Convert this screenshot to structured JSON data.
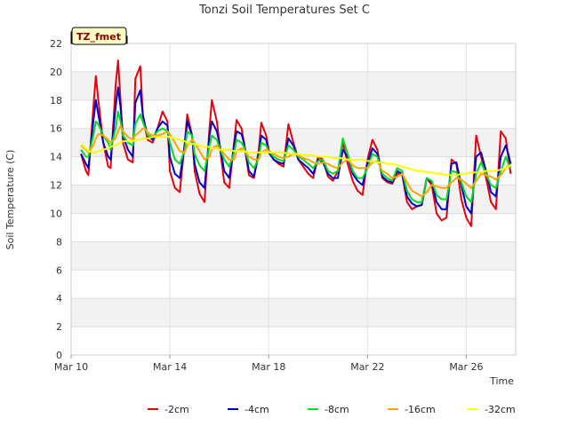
{
  "chart_data": {
    "type": "line",
    "title": "Tonzi Soil Temperatures Set C",
    "xlabel": "Time",
    "ylabel": "Soil Temperature (C)",
    "tag": "TZ_fmet",
    "xlim": [
      0,
      18
    ],
    "ylim": [
      0,
      22
    ],
    "x_ticks": [
      {
        "day": 0,
        "label": "Mar 10"
      },
      {
        "day": 4,
        "label": "Mar 14"
      },
      {
        "day": 8,
        "label": "Mar 18"
      },
      {
        "day": 12,
        "label": "Mar 22"
      },
      {
        "day": 16,
        "label": "Mar 26"
      }
    ],
    "y_ticks": [
      0,
      2,
      4,
      6,
      8,
      10,
      12,
      14,
      16,
      18,
      20,
      22
    ],
    "grid": true,
    "legend_position": "bottom",
    "x_day_values": [
      0.4,
      0.6,
      0.7,
      0.9,
      1.0,
      1.1,
      1.3,
      1.5,
      1.6,
      1.8,
      1.9,
      2.0,
      2.1,
      2.3,
      2.5,
      2.6,
      2.8,
      2.9,
      3.0,
      3.1,
      3.3,
      3.5,
      3.7,
      3.9,
      4.0,
      4.2,
      4.4,
      4.6,
      4.7,
      4.9,
      5.0,
      5.2,
      5.4,
      5.6,
      5.7,
      5.9,
      6.0,
      6.2,
      6.4,
      6.6,
      6.7,
      6.9,
      7.0,
      7.2,
      7.4,
      7.6,
      7.7,
      7.9,
      8.0,
      8.2,
      8.4,
      8.6,
      8.8,
      9.0,
      9.2,
      9.4,
      9.6,
      9.8,
      10.0,
      10.2,
      10.4,
      10.6,
      10.8,
      11.0,
      11.2,
      11.4,
      11.6,
      11.8,
      12.0,
      12.2,
      12.4,
      12.6,
      12.8,
      13.0,
      13.2,
      13.4,
      13.6,
      13.8,
      14.0,
      14.2,
      14.4,
      14.6,
      14.8,
      15.0,
      15.2,
      15.4,
      15.6,
      15.8,
      16.0,
      16.2,
      16.4,
      16.6,
      16.8,
      17.0,
      17.2,
      17.4,
      17.6,
      17.7,
      17.8
    ],
    "series": [
      {
        "name": "-2cm",
        "color": "#e8000b",
        "values": [
          14.2,
          13.0,
          12.7,
          17.5,
          19.7,
          18.0,
          15.0,
          13.3,
          13.2,
          19.0,
          20.8,
          18.0,
          15.0,
          13.8,
          13.6,
          19.5,
          20.4,
          17.0,
          16.0,
          15.2,
          15.0,
          16.0,
          17.2,
          16.5,
          13.0,
          11.8,
          11.5,
          15.0,
          17.0,
          15.5,
          13.0,
          11.4,
          10.8,
          16.0,
          18.0,
          16.5,
          15.0,
          12.2,
          11.8,
          15.0,
          16.6,
          16.0,
          15.0,
          12.7,
          12.5,
          14.5,
          16.4,
          15.5,
          14.5,
          13.8,
          13.5,
          13.3,
          16.3,
          15.0,
          13.8,
          13.3,
          12.8,
          12.5,
          14.0,
          13.8,
          12.6,
          12.3,
          13.0,
          15.0,
          13.5,
          12.3,
          11.6,
          11.3,
          13.8,
          15.2,
          14.5,
          12.5,
          12.2,
          12.1,
          12.8,
          12.8,
          10.8,
          10.3,
          10.5,
          10.6,
          12.5,
          12.0,
          10.0,
          9.5,
          9.7,
          13.8,
          13.5,
          11.0,
          9.7,
          9.1,
          15.5,
          14.0,
          12.5,
          10.8,
          10.3,
          15.8,
          15.3,
          14.0,
          12.8
        ]
      },
      {
        "name": "-4cm",
        "color": "#0000cc",
        "values": [
          14.2,
          13.5,
          13.2,
          16.5,
          18.0,
          17.0,
          15.0,
          14.0,
          13.8,
          17.5,
          18.9,
          17.5,
          15.5,
          14.5,
          14.0,
          17.8,
          18.7,
          17.0,
          16.2,
          15.5,
          15.2,
          16.0,
          16.5,
          16.2,
          14.0,
          12.8,
          12.5,
          14.8,
          16.5,
          15.5,
          13.5,
          12.2,
          11.8,
          15.5,
          16.5,
          15.8,
          15.0,
          13.0,
          12.5,
          14.8,
          15.8,
          15.6,
          15.0,
          13.0,
          12.6,
          14.2,
          15.5,
          15.2,
          14.3,
          13.8,
          13.6,
          13.5,
          15.3,
          14.8,
          13.8,
          13.5,
          13.2,
          12.8,
          13.8,
          13.6,
          12.8,
          12.5,
          12.5,
          14.5,
          14.0,
          12.8,
          12.3,
          12.0,
          13.5,
          14.6,
          14.2,
          12.6,
          12.3,
          12.2,
          13.0,
          12.8,
          11.2,
          10.7,
          10.5,
          10.6,
          12.5,
          12.2,
          10.8,
          10.3,
          10.3,
          13.5,
          13.6,
          12.0,
          10.5,
          10.0,
          14.0,
          14.3,
          13.0,
          11.5,
          11.2,
          14.0,
          14.8,
          14.2,
          13.5
        ]
      },
      {
        "name": "-8cm",
        "color": "#00dd22",
        "values": [
          14.5,
          14.0,
          14.0,
          15.5,
          16.5,
          16.3,
          15.5,
          15.0,
          14.5,
          16.0,
          17.2,
          16.5,
          15.5,
          15.0,
          14.8,
          16.3,
          17.0,
          16.5,
          16.0,
          15.5,
          15.4,
          15.8,
          16.0,
          15.8,
          15.0,
          13.8,
          13.5,
          14.5,
          15.8,
          15.5,
          14.2,
          13.4,
          13.0,
          14.8,
          15.5,
          15.2,
          14.7,
          13.8,
          13.3,
          14.3,
          15.2,
          15.0,
          14.7,
          13.6,
          13.2,
          13.9,
          15.0,
          14.8,
          14.4,
          14.0,
          13.8,
          13.7,
          14.8,
          14.5,
          14.0,
          13.8,
          13.5,
          13.2,
          13.7,
          13.8,
          13.0,
          12.8,
          13.0,
          15.3,
          14.2,
          13.0,
          12.5,
          12.5,
          13.2,
          14.2,
          14.0,
          12.8,
          12.5,
          12.3,
          13.2,
          13.0,
          11.6,
          11.0,
          10.8,
          10.8,
          12.5,
          12.3,
          11.3,
          11.0,
          11.0,
          13.0,
          12.9,
          12.2,
          11.2,
          10.8,
          12.8,
          13.6,
          12.8,
          12.0,
          11.8,
          13.0,
          14.0,
          13.5,
          13.2
        ]
      },
      {
        "name": "-16cm",
        "color": "#ffa500",
        "values": [
          14.8,
          14.5,
          14.3,
          14.8,
          15.3,
          15.6,
          15.5,
          15.2,
          15.0,
          15.3,
          15.8,
          16.2,
          15.8,
          15.4,
          15.2,
          15.5,
          15.8,
          16.0,
          16.0,
          15.7,
          15.5,
          15.5,
          15.6,
          15.8,
          15.6,
          15.0,
          14.4,
          14.3,
          14.8,
          15.2,
          15.0,
          14.4,
          13.8,
          14.0,
          14.6,
          14.8,
          14.6,
          14.2,
          13.8,
          13.8,
          14.4,
          14.6,
          14.5,
          14.0,
          13.8,
          13.8,
          14.3,
          14.5,
          14.4,
          14.2,
          14.0,
          13.9,
          14.0,
          14.2,
          14.1,
          13.9,
          13.8,
          13.6,
          13.5,
          13.6,
          13.5,
          13.3,
          13.2,
          13.6,
          13.8,
          13.4,
          13.2,
          13.2,
          13.2,
          13.6,
          13.7,
          13.0,
          12.8,
          12.5,
          12.6,
          12.8,
          12.2,
          11.6,
          11.4,
          11.2,
          11.5,
          12.0,
          11.9,
          11.8,
          11.8,
          12.2,
          12.5,
          12.4,
          12.1,
          11.8,
          12.3,
          12.8,
          12.7,
          12.6,
          12.4,
          12.7,
          13.2,
          13.4,
          13.3
        ]
      },
      {
        "name": "-32cm",
        "color": "#ffff00",
        "values": [
          14.9,
          14.6,
          14.4,
          14.3,
          14.3,
          14.4,
          14.5,
          14.6,
          14.7,
          14.8,
          14.9,
          15.0,
          15.1,
          15.1,
          15.1,
          15.2,
          15.2,
          15.3,
          15.3,
          15.3,
          15.4,
          15.4,
          15.4,
          15.4,
          15.4,
          15.3,
          15.2,
          15.1,
          15.0,
          14.9,
          14.9,
          14.8,
          14.7,
          14.7,
          14.6,
          14.6,
          14.5,
          14.5,
          14.5,
          14.4,
          14.4,
          14.4,
          14.4,
          14.3,
          14.3,
          14.3,
          14.3,
          14.3,
          14.3,
          14.3,
          14.3,
          14.3,
          14.2,
          14.2,
          14.2,
          14.1,
          14.1,
          14.1,
          14.0,
          14.0,
          14.0,
          13.9,
          13.9,
          13.9,
          13.8,
          13.8,
          13.8,
          13.8,
          13.7,
          13.7,
          13.6,
          13.6,
          13.5,
          13.5,
          13.4,
          13.3,
          13.2,
          13.1,
          13.0,
          13.0,
          12.9,
          12.9,
          12.8,
          12.8,
          12.7,
          12.7,
          12.7,
          12.8,
          12.8,
          12.9,
          12.9,
          12.9,
          13.0,
          13.0,
          13.0,
          13.1,
          13.2,
          13.3,
          13.4
        ]
      }
    ]
  }
}
